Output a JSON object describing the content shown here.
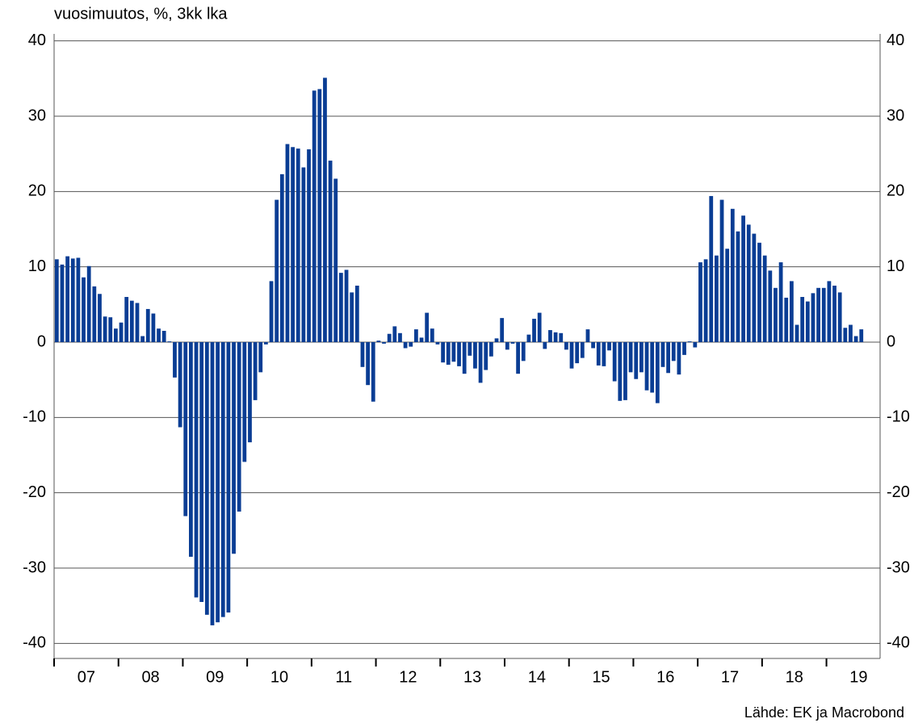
{
  "chart_data": {
    "type": "bar",
    "title": "vuosimuutos, %, 3kk lka",
    "source": "Lähde: EK ja Macrobond",
    "color": "#0a3d94",
    "categories": [
      null,
      null,
      null,
      null,
      null,
      null,
      "07",
      null,
      null,
      null,
      null,
      null,
      null,
      null,
      null,
      null,
      null,
      null,
      "08",
      null,
      null,
      null,
      null,
      null,
      null,
      null,
      null,
      null,
      null,
      null,
      "09",
      null,
      null,
      null,
      null,
      null,
      null,
      null,
      null,
      null,
      null,
      null,
      "10",
      null,
      null,
      null,
      null,
      null,
      null,
      null,
      null,
      null,
      null,
      null,
      "11",
      null,
      null,
      null,
      null,
      null,
      null,
      null,
      null,
      null,
      null,
      null,
      "12",
      null,
      null,
      null,
      null,
      null,
      null,
      null,
      null,
      null,
      null,
      null,
      "13",
      null,
      null,
      null,
      null,
      null,
      null,
      null,
      null,
      null,
      null,
      null,
      "14",
      null,
      null,
      null,
      null,
      null,
      null,
      null,
      null,
      null,
      null,
      null,
      "15",
      null,
      null,
      null,
      null,
      null,
      null,
      null,
      null,
      null,
      null,
      null,
      "16",
      null,
      null,
      null,
      null,
      null,
      null,
      null,
      null,
      null,
      null,
      null,
      "17",
      null,
      null,
      null,
      null,
      null,
      null,
      null,
      null,
      null,
      null,
      null,
      "18",
      null,
      null,
      null,
      null,
      null,
      null,
      null,
      null,
      null,
      null,
      null,
      "19"
    ],
    "values": [
      11.0,
      10.3,
      11.4,
      11.1,
      11.2,
      8.6,
      10.1,
      7.4,
      6.4,
      3.4,
      3.3,
      1.8,
      2.6,
      6.0,
      5.5,
      5.2,
      0.8,
      4.4,
      3.8,
      1.8,
      1.5,
      0.1,
      -4.7,
      -11.3,
      -23.1,
      -28.5,
      -33.9,
      -34.5,
      -36.2,
      -37.6,
      -37.2,
      -36.5,
      -35.9,
      -28.1,
      -22.5,
      -15.9,
      -13.3,
      -7.7,
      -4.0,
      -0.3,
      8.1,
      18.9,
      22.3,
      26.3,
      25.9,
      25.7,
      23.2,
      25.6,
      33.4,
      33.6,
      35.1,
      24.1,
      21.7,
      9.2,
      9.6,
      6.6,
      7.5,
      -3.3,
      -5.7,
      -7.9,
      0.2,
      -0.2,
      1.1,
      2.1,
      1.2,
      -0.8,
      -0.6,
      1.7,
      0.6,
      3.9,
      1.8,
      -0.3,
      -2.7,
      -3.0,
      -2.6,
      -3.2,
      -4.2,
      -1.8,
      -3.5,
      -5.4,
      -3.7,
      -1.9,
      0.5,
      3.2,
      -1.0,
      -0.2,
      -4.2,
      -2.5,
      1.0,
      3.1,
      3.9,
      -0.9,
      1.6,
      1.3,
      1.2,
      -1.0,
      -3.5,
      -2.8,
      -2.1,
      1.7,
      -0.8,
      -3.1,
      -3.2,
      -1.1,
      -5.2,
      -7.8,
      -7.7,
      -4.0,
      -4.9,
      -4.0,
      -6.4,
      -6.7,
      -8.1,
      -3.3,
      -4.1,
      -2.5,
      -4.3,
      -1.7,
      0.1,
      -0.7,
      10.6,
      11.0,
      19.4,
      11.5,
      18.9,
      12.4,
      17.7,
      14.7,
      16.8,
      15.6,
      14.4,
      13.2,
      11.5,
      9.5,
      7.2,
      10.6,
      5.9,
      8.1,
      2.3,
      6.0,
      5.4,
      6.5,
      7.2,
      7.2,
      8.1,
      7.5,
      6.6,
      1.9,
      2.3,
      0.8,
      1.7
    ],
    "ylim": [
      -42,
      42
    ],
    "yticks": [
      40,
      30,
      20,
      10,
      0,
      -10,
      -20,
      -30,
      -40
    ],
    "grid": true
  }
}
